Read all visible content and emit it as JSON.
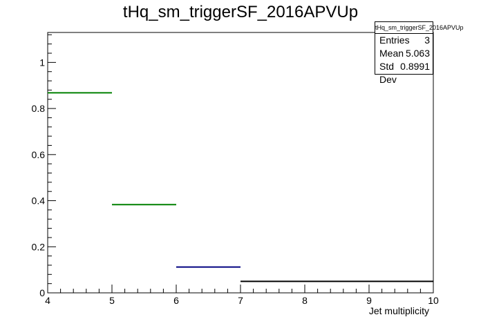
{
  "chart_data": {
    "type": "histogram",
    "title": "tHq_sm_triggerSF_2016APVUp",
    "xlabel": "Jet multiplicity",
    "ylabel": "",
    "xlim": [
      4,
      10
    ],
    "ylim": [
      0,
      1.13
    ],
    "x_ticks": [
      "4",
      "5",
      "6",
      "7",
      "8",
      "9",
      "10"
    ],
    "y_ticks": [
      "0",
      "0.2",
      "0.4",
      "0.6",
      "0.8",
      "1"
    ],
    "grid": false,
    "bins": [
      {
        "x_low": 4,
        "x_high": 5,
        "value": 0.868,
        "color": "#008000"
      },
      {
        "x_low": 5,
        "x_high": 6,
        "value": 0.383,
        "color": "#008000"
      },
      {
        "x_low": 6,
        "x_high": 7,
        "value": 0.112,
        "color": "#000080"
      },
      {
        "x_low": 7,
        "x_high": 10,
        "value": 0.05,
        "color": "#000000"
      }
    ],
    "stats": {
      "title": "tHq_sm_triggerSF_2016APVUp",
      "rows": [
        {
          "label": "Entries",
          "value": "3"
        },
        {
          "label": "Mean",
          "value": "5.063"
        },
        {
          "label": "Std Dev",
          "value": "0.8991"
        }
      ]
    }
  }
}
